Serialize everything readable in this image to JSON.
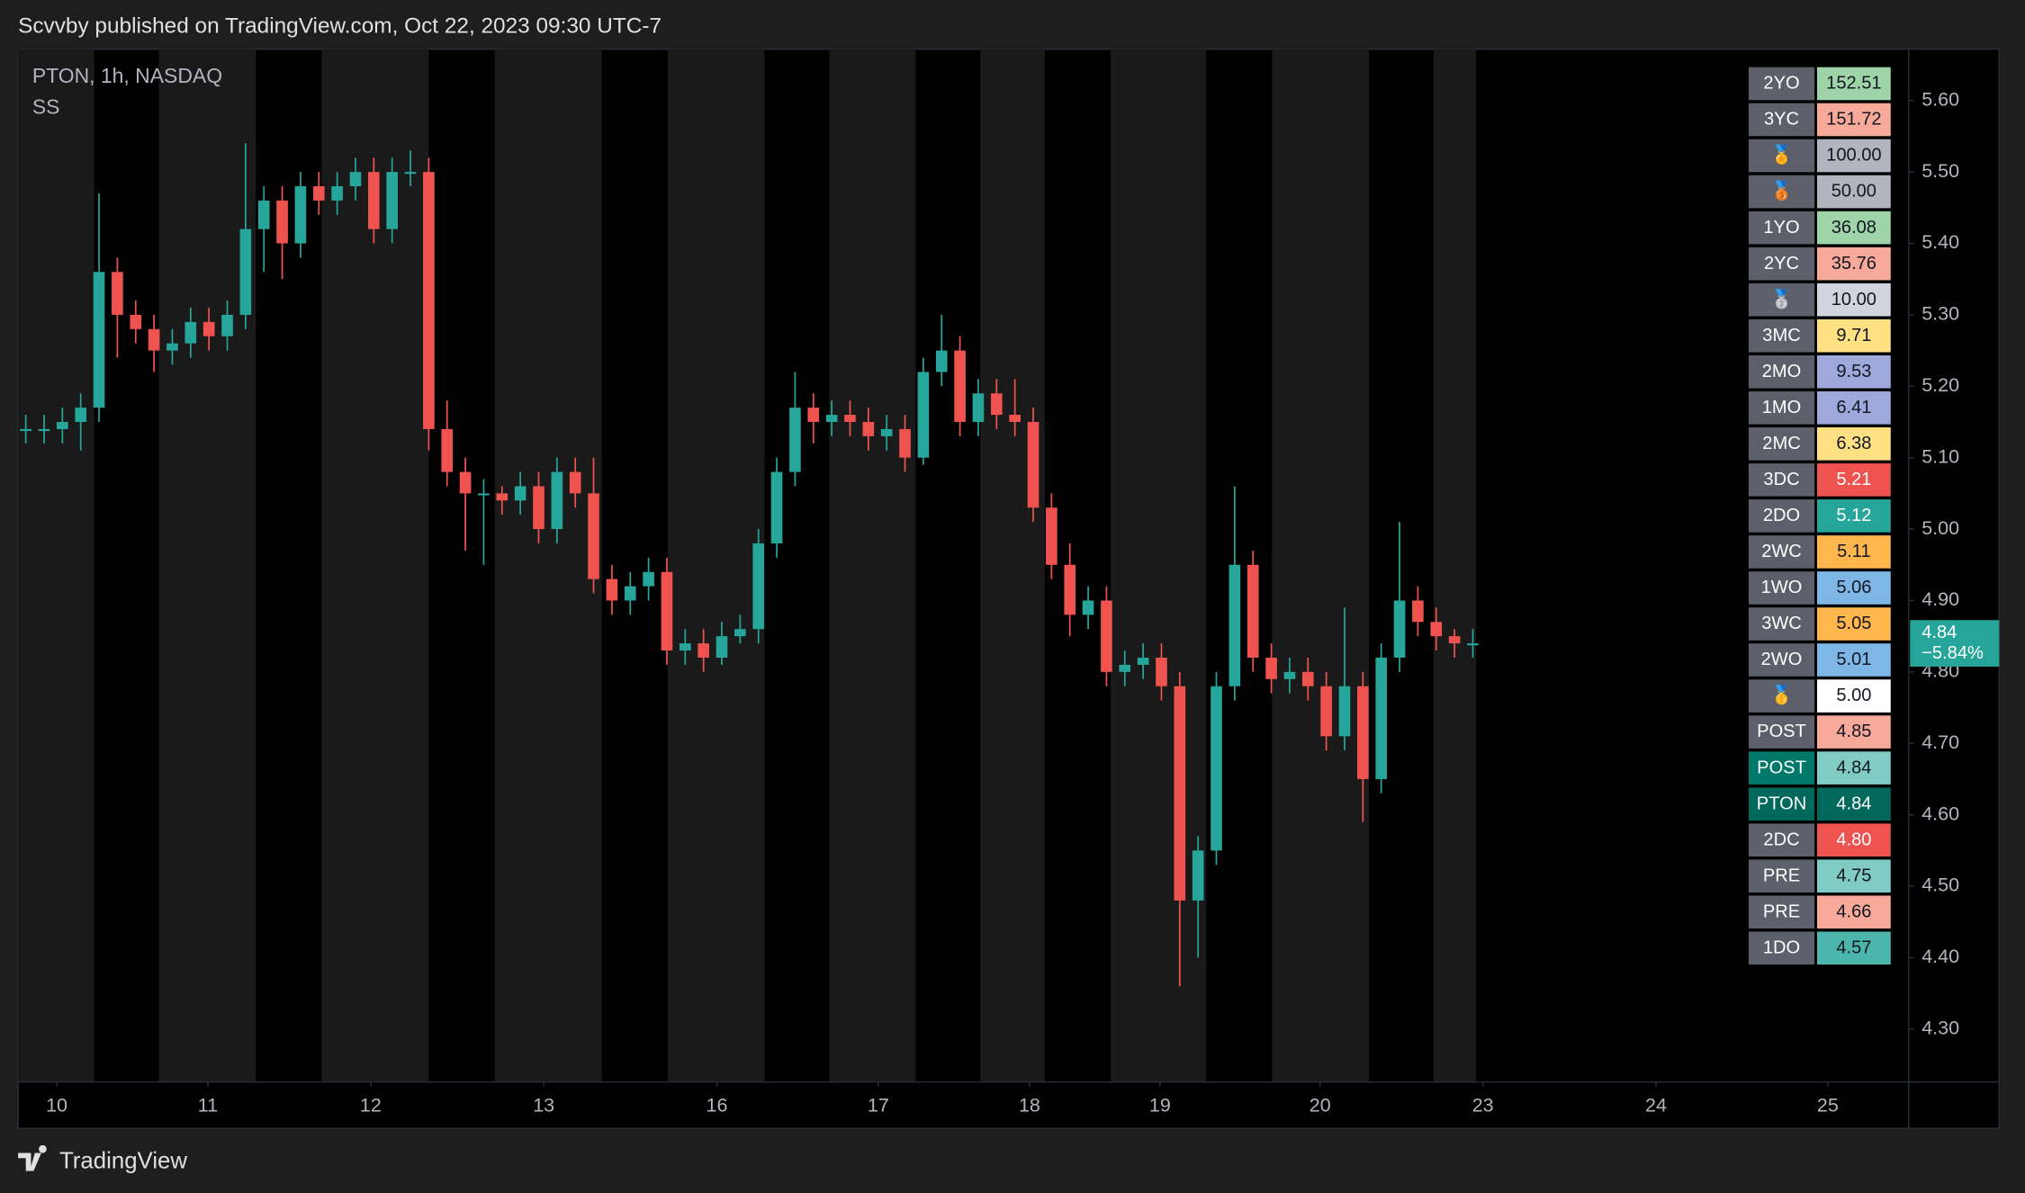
{
  "header": {
    "title": "Scvvby published on TradingView.com, Oct 22, 2023 09:30 UTC-7"
  },
  "footer": {
    "brand": "TradingView"
  },
  "chart_data": {
    "type": "candlestick",
    "title": "PTON, 1h, NASDAQ",
    "subtitle": "SS",
    "up_color": "#26a69a",
    "down_color": "#ef5350",
    "x": [
      0,
      1,
      2,
      3,
      4,
      5,
      6,
      7,
      8,
      9,
      10,
      11,
      12,
      13,
      14,
      15,
      16,
      17,
      18,
      19,
      20,
      21,
      22,
      23,
      24,
      25,
      26,
      27,
      28,
      29,
      30,
      31,
      32,
      33,
      34,
      35,
      36,
      37,
      38,
      39,
      40,
      41,
      42,
      43,
      44,
      45,
      46,
      47,
      48,
      49,
      50,
      51,
      52,
      53,
      54,
      55,
      56,
      57,
      58,
      59,
      60,
      61,
      62,
      63,
      64,
      65,
      66,
      67,
      68,
      69,
      70,
      71,
      72,
      73,
      74,
      75,
      76,
      77,
      78,
      79
    ],
    "open": [
      5.14,
      5.14,
      5.14,
      5.15,
      5.17,
      5.36,
      5.3,
      5.28,
      5.25,
      5.26,
      5.29,
      5.27,
      5.3,
      5.42,
      5.46,
      5.4,
      5.48,
      5.46,
      5.48,
      5.5,
      5.42,
      5.5,
      5.5,
      5.14,
      5.08,
      5.05,
      5.05,
      5.04,
      5.06,
      5.0,
      5.08,
      5.05,
      4.93,
      4.9,
      4.92,
      4.94,
      4.83,
      4.84,
      4.82,
      4.85,
      4.86,
      4.98,
      5.08,
      5.17,
      5.15,
      5.16,
      5.15,
      5.13,
      5.14,
      5.1,
      5.22,
      5.25,
      5.15,
      5.19,
      5.16,
      5.15,
      5.03,
      4.95,
      4.88,
      4.9,
      4.8,
      4.81,
      4.82,
      4.78,
      4.48,
      4.55,
      4.78,
      4.95,
      4.82,
      4.79,
      4.8,
      4.78,
      4.71,
      4.78,
      4.65,
      4.82,
      4.9,
      4.87,
      4.85,
      4.84
    ],
    "high": [
      5.16,
      5.16,
      5.17,
      5.19,
      5.47,
      5.38,
      5.32,
      5.3,
      5.28,
      5.31,
      5.31,
      5.32,
      5.54,
      5.48,
      5.48,
      5.5,
      5.5,
      5.5,
      5.52,
      5.52,
      5.52,
      5.53,
      5.52,
      5.18,
      5.1,
      5.07,
      5.06,
      5.08,
      5.08,
      5.1,
      5.1,
      5.1,
      4.95,
      4.94,
      4.96,
      4.96,
      4.86,
      4.86,
      4.87,
      4.88,
      5.0,
      5.1,
      5.22,
      5.19,
      5.18,
      5.18,
      5.17,
      5.16,
      5.16,
      5.24,
      5.3,
      5.27,
      5.21,
      5.21,
      5.21,
      5.17,
      5.05,
      4.98,
      4.92,
      4.92,
      4.83,
      4.84,
      4.84,
      4.8,
      4.57,
      4.8,
      5.06,
      4.97,
      4.84,
      4.82,
      4.82,
      4.8,
      4.89,
      4.8,
      4.84,
      5.01,
      4.92,
      4.89,
      4.86,
      4.86
    ],
    "low": [
      5.12,
      5.12,
      5.12,
      5.11,
      5.15,
      5.24,
      5.26,
      5.22,
      5.23,
      5.24,
      5.25,
      5.25,
      5.28,
      5.36,
      5.35,
      5.38,
      5.44,
      5.44,
      5.46,
      5.4,
      5.4,
      5.48,
      5.11,
      5.06,
      4.97,
      4.95,
      5.02,
      5.02,
      4.98,
      4.98,
      5.03,
      4.91,
      4.88,
      4.88,
      4.9,
      4.81,
      4.81,
      4.8,
      4.81,
      4.84,
      4.84,
      4.96,
      5.06,
      5.12,
      5.13,
      5.13,
      5.11,
      5.11,
      5.08,
      5.09,
      5.2,
      5.13,
      5.13,
      5.14,
      5.13,
      5.01,
      4.93,
      4.85,
      4.86,
      4.78,
      4.78,
      4.79,
      4.76,
      4.36,
      4.4,
      4.53,
      4.76,
      4.8,
      4.77,
      4.77,
      4.76,
      4.69,
      4.69,
      4.59,
      4.63,
      4.8,
      4.85,
      4.83,
      4.82,
      4.82
    ],
    "close": [
      5.14,
      5.14,
      5.15,
      5.17,
      5.36,
      5.3,
      5.28,
      5.25,
      5.26,
      5.29,
      5.27,
      5.3,
      5.42,
      5.46,
      5.4,
      5.48,
      5.46,
      5.48,
      5.5,
      5.42,
      5.5,
      5.5,
      5.14,
      5.08,
      5.05,
      5.05,
      5.04,
      5.06,
      5.0,
      5.08,
      5.05,
      4.93,
      4.9,
      4.92,
      4.94,
      4.83,
      4.84,
      4.82,
      4.85,
      4.86,
      4.98,
      5.08,
      5.17,
      5.15,
      5.16,
      5.15,
      5.13,
      5.14,
      5.1,
      5.22,
      5.25,
      5.15,
      5.19,
      5.16,
      5.15,
      5.03,
      4.95,
      4.88,
      4.9,
      4.8,
      4.81,
      4.82,
      4.78,
      4.48,
      4.55,
      4.78,
      4.95,
      4.82,
      4.79,
      4.8,
      4.78,
      4.71,
      4.78,
      4.65,
      4.82,
      4.9,
      4.87,
      4.85,
      4.84,
      4.84
    ],
    "xlim": [
      -0.42,
      102.8
    ],
    "xticks": [
      {
        "value": 1.69,
        "label": "10"
      },
      {
        "value": 9.94,
        "label": "11"
      },
      {
        "value": 18.83,
        "label": "12"
      },
      {
        "value": 28.28,
        "label": "13"
      },
      {
        "value": 37.73,
        "label": "16"
      },
      {
        "value": 46.54,
        "label": "17"
      },
      {
        "value": 54.8,
        "label": "18"
      },
      {
        "value": 61.92,
        "label": "19"
      },
      {
        "value": 70.66,
        "label": "20"
      },
      {
        "value": 79.55,
        "label": "23"
      },
      {
        "value": 89.0,
        "label": "24"
      },
      {
        "value": 98.38,
        "label": "25"
      }
    ],
    "ylim": [
      4.226,
      5.672
    ],
    "yticks": [
      {
        "value": 4.3,
        "label": "4.30"
      },
      {
        "value": 4.4,
        "label": "4.40"
      },
      {
        "value": 4.5,
        "label": "4.50"
      },
      {
        "value": 4.6,
        "label": "4.60"
      },
      {
        "value": 4.7,
        "label": "4.70"
      },
      {
        "value": 4.8,
        "label": "4.80"
      },
      {
        "value": 4.9,
        "label": "4.90"
      },
      {
        "value": 5.0,
        "label": "5.00"
      },
      {
        "value": 5.1,
        "label": "5.10"
      },
      {
        "value": 5.2,
        "label": "5.20"
      },
      {
        "value": 5.3,
        "label": "5.30"
      },
      {
        "value": 5.4,
        "label": "5.40"
      },
      {
        "value": 5.5,
        "label": "5.50"
      },
      {
        "value": 5.6,
        "label": "5.60"
      }
    ],
    "price_tag": {
      "value": 4.84,
      "label": "4.84",
      "change": "−5.84%",
      "color": "#26a69a"
    }
  },
  "table": {
    "rows": [
      {
        "label": "2YO",
        "value": "152.51",
        "label_color": "#5d606b",
        "color": "#9fd3a8"
      },
      {
        "label": "3YC",
        "value": "151.72",
        "label_color": "#5d606b",
        "color": "#f7a99a"
      },
      {
        "label": "🏅",
        "value": "100.00",
        "label_color": "#5d606b",
        "color": "#b2b5be"
      },
      {
        "label": "🥉",
        "value": "50.00",
        "label_color": "#5d606b",
        "color": "#b2b5be"
      },
      {
        "label": "1YO",
        "value": "36.08",
        "label_color": "#5d606b",
        "color": "#9fd3a8"
      },
      {
        "label": "2YC",
        "value": "35.76",
        "label_color": "#5d606b",
        "color": "#f7a99a"
      },
      {
        "label": "🥈",
        "value": "10.00",
        "label_color": "#5d606b",
        "color": "#d1d4dc"
      },
      {
        "label": "3MC",
        "value": "9.71",
        "label_color": "#5d606b",
        "color": "#ffe082"
      },
      {
        "label": "2MO",
        "value": "9.53",
        "label_color": "#5d606b",
        "color": "#9fa8da"
      },
      {
        "label": "1MO",
        "value": "6.41",
        "label_color": "#5d606b",
        "color": "#9fa8da"
      },
      {
        "label": "2MC",
        "value": "6.38",
        "label_color": "#5d606b",
        "color": "#ffe082"
      },
      {
        "label": "3DC",
        "value": "5.21",
        "label_color": "#5d606b",
        "color": "#ef5350"
      },
      {
        "label": "2DO",
        "value": "5.12",
        "label_color": "#5d606b",
        "color": "#26a69a"
      },
      {
        "label": "2WC",
        "value": "5.11",
        "label_color": "#5d606b",
        "color": "#ffb74d"
      },
      {
        "label": "1WO",
        "value": "5.06",
        "label_color": "#5d606b",
        "color": "#7eb6e6"
      },
      {
        "label": "3WC",
        "value": "5.05",
        "label_color": "#5d606b",
        "color": "#ffb74d"
      },
      {
        "label": "2WO",
        "value": "5.01",
        "label_color": "#5d606b",
        "color": "#7eb6e6"
      },
      {
        "label": "🥇",
        "value": "5.00",
        "label_color": "#5d606b",
        "color": "#ffffff"
      },
      {
        "label": "POST",
        "value": "4.85",
        "label_color": "#5d606b",
        "color": "#f7a99a"
      },
      {
        "label": "POST",
        "value": "4.84",
        "label_color": "#00796b",
        "color": "#80cbc4"
      },
      {
        "label": "PTON",
        "value": "4.84",
        "label_color": "#00695c",
        "color": "#00695c"
      },
      {
        "label": "2DC",
        "value": "4.80",
        "label_color": "#5d606b",
        "color": "#ef5350"
      },
      {
        "label": "PRE",
        "value": "4.75",
        "label_color": "#5d606b",
        "color": "#80cbc4"
      },
      {
        "label": "PRE",
        "value": "4.66",
        "label_color": "#5d606b",
        "color": "#f7a99a"
      },
      {
        "label": "1DO",
        "value": "4.57",
        "label_color": "#5d606b",
        "color": "#4db6ac"
      }
    ]
  }
}
